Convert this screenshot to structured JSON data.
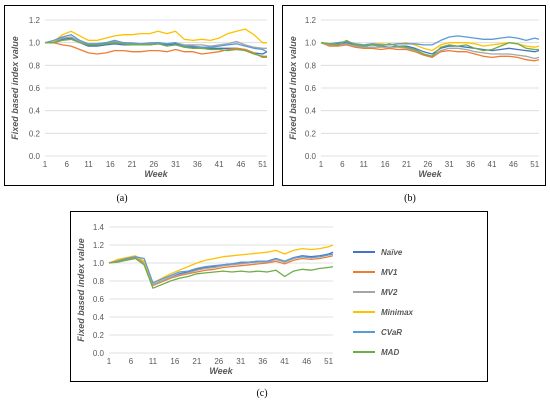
{
  "colors": {
    "Naïve": "#4472C4",
    "MV1": "#ED7D31",
    "MV2": "#A5A5A5",
    "Minimax": "#FFC000",
    "CVaR": "#5B9BD5",
    "MAD": "#70AD47"
  },
  "captions": {
    "a": "(a)",
    "b": "(b)",
    "c": "(c)"
  },
  "chart_data": [
    {
      "type": "line",
      "xlabel": "Week",
      "ylabel": "Fixed based index value",
      "x_ticks": [
        1,
        6,
        11,
        16,
        21,
        26,
        31,
        36,
        41,
        46,
        51
      ],
      "ylim": [
        0,
        1.2
      ],
      "y_ticks": [
        "0.0",
        "0.2",
        "0.4",
        "0.6",
        "0.8",
        "1.0",
        "1.2"
      ],
      "grid": true,
      "x": [
        1,
        3,
        5,
        7,
        9,
        11,
        13,
        15,
        17,
        19,
        21,
        23,
        25,
        27,
        29,
        31,
        33,
        35,
        37,
        39,
        41,
        43,
        45,
        47,
        49,
        51,
        52
      ],
      "series": [
        {
          "name": "Naïve",
          "values": [
            1.0,
            1.0,
            1.03,
            1.04,
            1.0,
            0.97,
            0.97,
            0.98,
            0.99,
            0.98,
            0.98,
            0.98,
            0.98,
            0.99,
            0.98,
            0.99,
            0.96,
            0.96,
            0.96,
            0.95,
            0.95,
            0.95,
            0.95,
            0.94,
            0.91,
            0.9,
            0.92
          ]
        },
        {
          "name": "MV1",
          "values": [
            1.0,
            1.0,
            0.98,
            0.97,
            0.94,
            0.91,
            0.9,
            0.91,
            0.93,
            0.93,
            0.92,
            0.92,
            0.93,
            0.93,
            0.92,
            0.94,
            0.92,
            0.92,
            0.9,
            0.91,
            0.92,
            0.94,
            0.95,
            0.94,
            0.91,
            0.87,
            0.87
          ]
        },
        {
          "name": "MV2",
          "values": [
            1.0,
            1.01,
            1.04,
            1.05,
            1.01,
            0.98,
            0.99,
            1.0,
            1.01,
            1.0,
            1.0,
            0.99,
            1.0,
            1.0,
            0.99,
            1.0,
            0.98,
            0.98,
            0.98,
            0.97,
            0.98,
            0.99,
            1.01,
            0.98,
            0.96,
            0.95,
            0.95
          ]
        },
        {
          "name": "Minimax",
          "values": [
            1.0,
            1.01,
            1.07,
            1.1,
            1.06,
            1.02,
            1.02,
            1.04,
            1.06,
            1.07,
            1.07,
            1.08,
            1.08,
            1.1,
            1.08,
            1.1,
            1.03,
            1.02,
            1.03,
            1.02,
            1.04,
            1.08,
            1.1,
            1.12,
            1.07,
            1.0,
            1.0
          ]
        },
        {
          "name": "CVaR",
          "values": [
            1.0,
            1.02,
            1.05,
            1.07,
            1.02,
            0.99,
            0.99,
            1.0,
            1.02,
            1.0,
            0.99,
            0.99,
            0.99,
            1.0,
            0.99,
            1.0,
            0.97,
            0.97,
            0.96,
            0.96,
            0.97,
            0.98,
            0.99,
            0.97,
            0.95,
            0.94,
            0.92
          ]
        },
        {
          "name": "MAD",
          "values": [
            1.0,
            1.0,
            1.02,
            1.03,
            1.0,
            0.98,
            0.98,
            0.99,
            1.0,
            0.99,
            0.98,
            0.98,
            0.98,
            0.99,
            0.97,
            0.98,
            0.96,
            0.95,
            0.95,
            0.94,
            0.94,
            0.93,
            0.94,
            0.93,
            0.9,
            0.88,
            0.88
          ]
        }
      ]
    },
    {
      "type": "line",
      "xlabel": "Week",
      "ylabel": "Fixed based index value",
      "x_ticks": [
        1,
        6,
        11,
        16,
        21,
        26,
        31,
        36,
        41,
        46,
        51
      ],
      "ylim": [
        0,
        1.2
      ],
      "y_ticks": [
        "0.0",
        "0.2",
        "0.4",
        "0.6",
        "0.8",
        "1.0",
        "1.2"
      ],
      "grid": true,
      "x": [
        1,
        3,
        5,
        7,
        9,
        11,
        13,
        15,
        17,
        19,
        21,
        23,
        25,
        27,
        29,
        31,
        33,
        35,
        37,
        39,
        41,
        43,
        45,
        47,
        49,
        51,
        52
      ],
      "series": [
        {
          "name": "Naïve",
          "values": [
            1.0,
            0.98,
            0.99,
            1.0,
            0.98,
            0.97,
            0.98,
            0.97,
            0.96,
            0.97,
            0.97,
            0.95,
            0.92,
            0.9,
            0.95,
            0.97,
            0.97,
            0.96,
            0.95,
            0.94,
            0.93,
            0.94,
            0.95,
            0.94,
            0.93,
            0.92,
            0.93
          ]
        },
        {
          "name": "MV1",
          "values": [
            1.0,
            0.97,
            0.97,
            0.98,
            0.96,
            0.95,
            0.95,
            0.94,
            0.95,
            0.94,
            0.94,
            0.92,
            0.89,
            0.87,
            0.92,
            0.93,
            0.92,
            0.92,
            0.9,
            0.88,
            0.87,
            0.88,
            0.88,
            0.87,
            0.85,
            0.84,
            0.85
          ]
        },
        {
          "name": "MV2",
          "values": [
            1.0,
            0.98,
            0.98,
            0.99,
            0.97,
            0.96,
            0.96,
            0.96,
            0.96,
            0.96,
            0.95,
            0.93,
            0.9,
            0.88,
            0.93,
            0.95,
            0.95,
            0.94,
            0.92,
            0.91,
            0.9,
            0.9,
            0.9,
            0.89,
            0.88,
            0.86,
            0.87
          ]
        },
        {
          "name": "Minimax",
          "values": [
            1.0,
            0.99,
            1.0,
            1.01,
            0.99,
            0.98,
            0.99,
            0.99,
            0.98,
            0.99,
            1.0,
            0.98,
            0.95,
            0.93,
            0.98,
            1.0,
            1.0,
            1.0,
            0.99,
            0.97,
            0.98,
            0.99,
            1.0,
            0.99,
            0.97,
            0.96,
            0.97
          ]
        },
        {
          "name": "CVaR",
          "values": [
            1.0,
            0.99,
            1.0,
            1.01,
            0.99,
            0.98,
            0.99,
            0.98,
            0.98,
            0.99,
            0.99,
            0.99,
            0.98,
            0.98,
            1.02,
            1.05,
            1.06,
            1.05,
            1.04,
            1.03,
            1.03,
            1.04,
            1.05,
            1.04,
            1.02,
            1.04,
            1.03
          ]
        },
        {
          "name": "MAD",
          "values": [
            1.0,
            0.99,
            0.98,
            1.02,
            0.98,
            0.97,
            0.98,
            0.97,
            0.99,
            0.97,
            0.96,
            0.94,
            0.9,
            0.88,
            0.96,
            0.98,
            0.97,
            0.98,
            0.95,
            0.93,
            0.94,
            0.97,
            1.0,
            0.99,
            0.95,
            0.94,
            0.94
          ]
        }
      ]
    },
    {
      "type": "line",
      "xlabel": "Week",
      "ylabel": "Fixed based index value",
      "x_ticks": [
        1,
        6,
        11,
        16,
        21,
        26,
        31,
        36,
        41,
        46,
        51
      ],
      "ylim": [
        0,
        1.4
      ],
      "y_ticks": [
        "0.0",
        "0.2",
        "0.4",
        "0.6",
        "0.8",
        "1.0",
        "1.2",
        "1.4"
      ],
      "grid": true,
      "legend": "right",
      "x": [
        1,
        3,
        5,
        7,
        9,
        11,
        13,
        15,
        17,
        19,
        21,
        23,
        25,
        27,
        29,
        31,
        33,
        35,
        37,
        39,
        41,
        43,
        45,
        47,
        49,
        51,
        52
      ],
      "series": [
        {
          "name": "Naïve",
          "values": [
            1.0,
            1.03,
            1.05,
            1.07,
            1.0,
            0.76,
            0.8,
            0.84,
            0.88,
            0.9,
            0.93,
            0.95,
            0.96,
            0.98,
            0.99,
            1.0,
            1.01,
            1.02,
            1.02,
            1.05,
            1.02,
            1.06,
            1.08,
            1.07,
            1.08,
            1.1,
            1.12
          ]
        },
        {
          "name": "MV1",
          "values": [
            1.0,
            1.02,
            1.04,
            1.06,
            1.0,
            0.75,
            0.79,
            0.83,
            0.86,
            0.88,
            0.9,
            0.92,
            0.93,
            0.95,
            0.96,
            0.97,
            0.98,
            0.99,
            1.0,
            1.02,
            0.99,
            1.03,
            1.05,
            1.04,
            1.05,
            1.07,
            1.08
          ]
        },
        {
          "name": "MV2",
          "values": [
            1.0,
            1.03,
            1.05,
            1.07,
            1.0,
            0.76,
            0.8,
            0.84,
            0.87,
            0.89,
            0.92,
            0.94,
            0.95,
            0.97,
            0.98,
            0.99,
            1.0,
            1.01,
            1.01,
            1.04,
            1.01,
            1.05,
            1.07,
            1.06,
            1.07,
            1.09,
            1.1
          ]
        },
        {
          "name": "Minimax",
          "values": [
            1.0,
            1.04,
            1.06,
            1.08,
            1.02,
            0.78,
            0.83,
            0.88,
            0.92,
            0.96,
            1.0,
            1.03,
            1.05,
            1.07,
            1.08,
            1.09,
            1.1,
            1.11,
            1.12,
            1.14,
            1.1,
            1.14,
            1.16,
            1.15,
            1.16,
            1.18,
            1.2
          ]
        },
        {
          "name": "CVaR",
          "values": [
            1.0,
            1.02,
            1.05,
            1.07,
            1.05,
            0.78,
            0.82,
            0.86,
            0.9,
            0.91,
            0.94,
            0.96,
            0.97,
            0.98,
            0.99,
            1.01,
            1.01,
            1.02,
            1.02,
            1.05,
            1.02,
            1.06,
            1.07,
            1.06,
            1.07,
            1.09,
            1.1
          ]
        },
        {
          "name": "MAD",
          "values": [
            1.0,
            1.01,
            1.03,
            1.05,
            0.98,
            0.72,
            0.76,
            0.8,
            0.83,
            0.85,
            0.88,
            0.89,
            0.9,
            0.91,
            0.9,
            0.91,
            0.9,
            0.91,
            0.9,
            0.92,
            0.85,
            0.91,
            0.93,
            0.92,
            0.94,
            0.95,
            0.96
          ]
        }
      ]
    }
  ]
}
